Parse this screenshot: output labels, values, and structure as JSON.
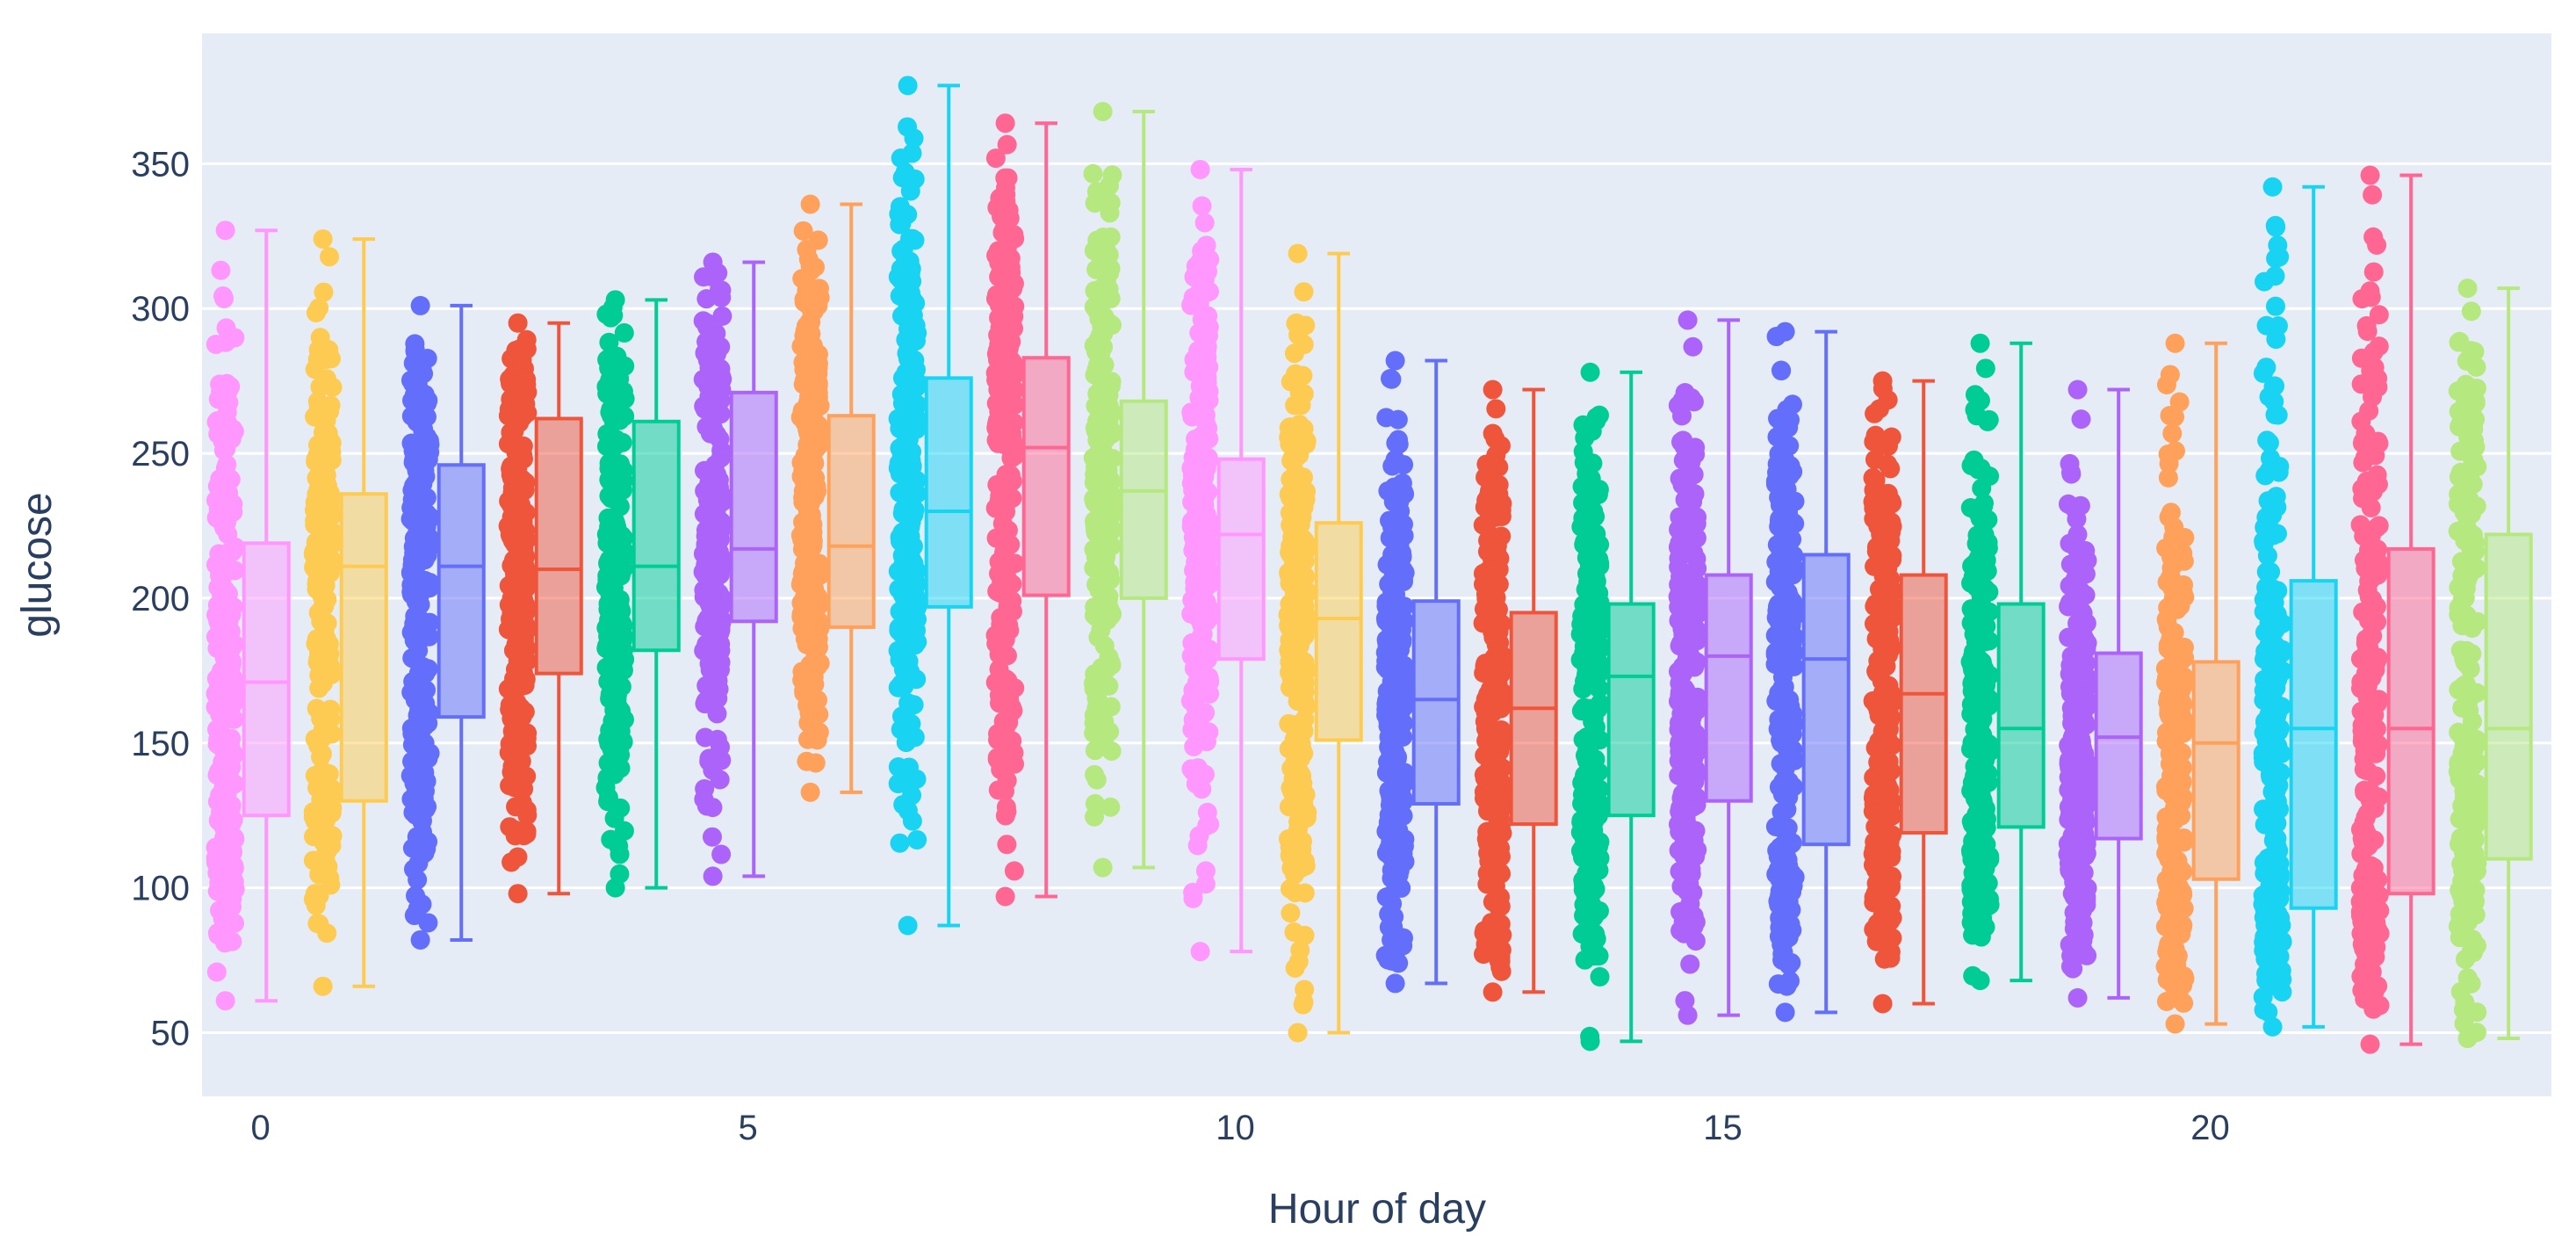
{
  "chart_data": {
    "type": "box",
    "title": "",
    "xlabel": "Hour of day",
    "ylabel": "glucose",
    "xlim": [
      -0.6,
      23.5
    ],
    "ylim": [
      28,
      395
    ],
    "xticks": [
      0,
      5,
      10,
      15,
      20
    ],
    "yticks": [
      50,
      100,
      150,
      200,
      250,
      300,
      350
    ],
    "grid": true,
    "points_shown": "all",
    "series": [
      {
        "hour": 0,
        "color": "#FF97FF",
        "min": 61,
        "q1": 125,
        "median": 171,
        "q3": 219,
        "max": 327
      },
      {
        "hour": 1,
        "color": "#FECB52",
        "min": 66,
        "q1": 130,
        "median": 211,
        "q3": 236,
        "max": 324
      },
      {
        "hour": 2,
        "color": "#636EFA",
        "min": 82,
        "q1": 159,
        "median": 211,
        "q3": 246,
        "max": 301
      },
      {
        "hour": 3,
        "color": "#EF553B",
        "min": 98,
        "q1": 174,
        "median": 210,
        "q3": 262,
        "max": 295
      },
      {
        "hour": 4,
        "color": "#00CC96",
        "min": 100,
        "q1": 182,
        "median": 211,
        "q3": 261,
        "max": 303
      },
      {
        "hour": 5,
        "color": "#AB63FA",
        "min": 104,
        "q1": 192,
        "median": 217,
        "q3": 271,
        "max": 316
      },
      {
        "hour": 6,
        "color": "#FFA15A",
        "min": 133,
        "q1": 190,
        "median": 218,
        "q3": 263,
        "max": 336
      },
      {
        "hour": 7,
        "color": "#19D3F3",
        "min": 87,
        "q1": 197,
        "median": 230,
        "q3": 276,
        "max": 377
      },
      {
        "hour": 8,
        "color": "#FF6692",
        "min": 97,
        "q1": 201,
        "median": 252,
        "q3": 283,
        "max": 364
      },
      {
        "hour": 9,
        "color": "#B6E880",
        "min": 107,
        "q1": 200,
        "median": 237,
        "q3": 268,
        "max": 368
      },
      {
        "hour": 10,
        "color": "#FF97FF",
        "min": 78,
        "q1": 179,
        "median": 222,
        "q3": 248,
        "max": 348
      },
      {
        "hour": 11,
        "color": "#FECB52",
        "min": 50,
        "q1": 151,
        "median": 193,
        "q3": 226,
        "max": 319
      },
      {
        "hour": 12,
        "color": "#636EFA",
        "min": 67,
        "q1": 129,
        "median": 165,
        "q3": 199,
        "max": 282
      },
      {
        "hour": 13,
        "color": "#EF553B",
        "min": 64,
        "q1": 122,
        "median": 162,
        "q3": 195,
        "max": 272
      },
      {
        "hour": 14,
        "color": "#00CC96",
        "min": 47,
        "q1": 125,
        "median": 173,
        "q3": 198,
        "max": 278
      },
      {
        "hour": 15,
        "color": "#AB63FA",
        "min": 56,
        "q1": 130,
        "median": 180,
        "q3": 208,
        "max": 296
      },
      {
        "hour": 16,
        "color": "#636EFA",
        "min": 57,
        "q1": 115,
        "median": 179,
        "q3": 215,
        "max": 292
      },
      {
        "hour": 17,
        "color": "#EF553B",
        "min": 60,
        "q1": 119,
        "median": 167,
        "q3": 208,
        "max": 275
      },
      {
        "hour": 18,
        "color": "#00CC96",
        "min": 68,
        "q1": 121,
        "median": 155,
        "q3": 198,
        "max": 288
      },
      {
        "hour": 19,
        "color": "#AB63FA",
        "min": 62,
        "q1": 117,
        "median": 152,
        "q3": 181,
        "max": 272
      },
      {
        "hour": 20,
        "color": "#FFA15A",
        "min": 53,
        "q1": 103,
        "median": 150,
        "q3": 178,
        "max": 288
      },
      {
        "hour": 21,
        "color": "#19D3F3",
        "min": 52,
        "q1": 93,
        "median": 155,
        "q3": 206,
        "max": 342
      },
      {
        "hour": 22,
        "color": "#FF6692",
        "min": 46,
        "q1": 98,
        "median": 155,
        "q3": 217,
        "max": 346
      },
      {
        "hour": 23,
        "color": "#B6E880",
        "min": 48,
        "q1": 110,
        "median": 155,
        "q3": 222,
        "max": 307
      }
    ]
  }
}
